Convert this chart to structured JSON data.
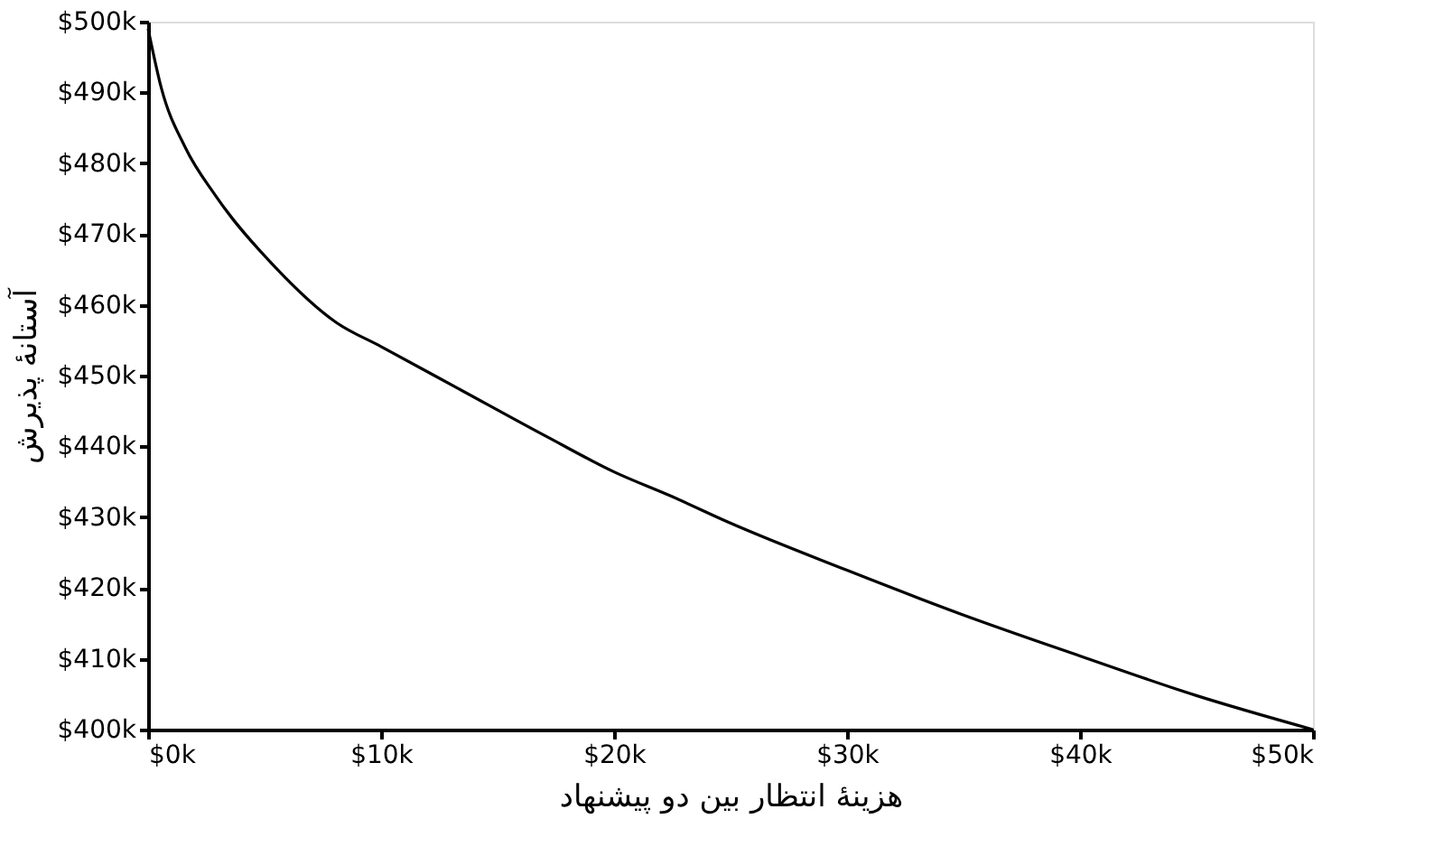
{
  "chart_data": {
    "type": "line",
    "xlabel": "هزینهٔ انتظار بین دو پیشنهاد",
    "ylabel": "آستانهٔ پذیرش",
    "x": [
      0,
      570,
      1600,
      2900,
      5490,
      8080,
      10000,
      13300,
      17100,
      20000,
      22500,
      24900,
      30000,
      34900,
      40000,
      45000,
      50000
    ],
    "series": [
      {
        "color": "#000000",
        "values": [
          499000,
          490600,
          482200,
          475400,
          465200,
          457500,
          454100,
          448200,
          441400,
          436400,
          432900,
          429300,
          422500,
          416300,
          410400,
          404800,
          400000
        ]
      }
    ],
    "xlim": [
      0,
      50000
    ],
    "ylim": [
      400000,
      500000
    ],
    "xticks": [
      {
        "value": 0,
        "label": "$0k"
      },
      {
        "value": 10000,
        "label": "$10k"
      },
      {
        "value": 20000,
        "label": "$20k"
      },
      {
        "value": 30000,
        "label": "$30k"
      },
      {
        "value": 40000,
        "label": "$40k"
      },
      {
        "value": 50000,
        "label": "$50k"
      }
    ],
    "yticks": [
      {
        "value": 400000,
        "label": "$400k"
      },
      {
        "value": 410000,
        "label": "$410k"
      },
      {
        "value": 420000,
        "label": "$420k"
      },
      {
        "value": 430000,
        "label": "$430k"
      },
      {
        "value": 440000,
        "label": "$440k"
      },
      {
        "value": 450000,
        "label": "$450k"
      },
      {
        "value": 460000,
        "label": "$460k"
      },
      {
        "value": 470000,
        "label": "$470k"
      },
      {
        "value": 480000,
        "label": "$480k"
      },
      {
        "value": 490000,
        "label": "$490k"
      },
      {
        "value": 500000,
        "label": "$500k"
      }
    ],
    "grid": false,
    "marker": "none",
    "line_style": "solid"
  }
}
